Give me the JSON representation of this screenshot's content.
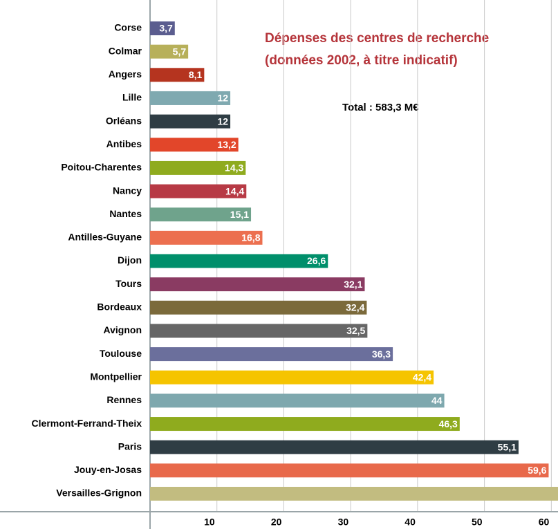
{
  "chart_data": {
    "type": "barh",
    "title": [
      "Dépenses des centres de recherche",
      "(données 2002, à titre indicatif)"
    ],
    "annotation": "Total : 583,3 M€",
    "categories": [
      "Corse",
      "Colmar",
      "Angers",
      "Lille",
      "Orléans",
      "Antibes",
      "Poitou-Charentes",
      "Nancy",
      "Nantes",
      "Antilles-Guyane",
      "Dijon",
      "Tours",
      "Bordeaux",
      "Avignon",
      "Toulouse",
      "Montpellier",
      "Rennes",
      "Clermont-Ferrand-Theix",
      "Paris",
      "Jouy-en-Josas",
      "Versailles-Grignon"
    ],
    "values": [
      3.7,
      5.7,
      8.1,
      12,
      12,
      13.2,
      14.3,
      14.4,
      15.1,
      16.8,
      26.6,
      32.1,
      32.4,
      32.5,
      36.3,
      42.4,
      44,
      46.3,
      55.1,
      59.6,
      61
    ],
    "value_labels": [
      "3,7",
      "5,7",
      "8,1",
      "12",
      "12",
      "13,2",
      "14,3",
      "14,4",
      "15,1",
      "16,8",
      "26,6",
      "32,1",
      "32,4",
      "32,5",
      "36,3",
      "42,4",
      "44",
      "46,3",
      "55,1",
      "59,6",
      null
    ],
    "colors": [
      "#5b5d8f",
      "#b7b05a",
      "#b5341f",
      "#7fa9b0",
      "#2f3d44",
      "#e2462a",
      "#8fab1e",
      "#b73a45",
      "#6fa38c",
      "#ec6f4f",
      "#008f6b",
      "#8a3b62",
      "#7b6a3b",
      "#666666",
      "#6b6f9c",
      "#f5c400",
      "#7ea8ae",
      "#8fab1e",
      "#2f3d44",
      "#e8694b",
      "#c2bc80"
    ],
    "xlim": [
      0,
      61
    ],
    "xticks": [
      10,
      20,
      30,
      40,
      50,
      60
    ],
    "grid": true
  }
}
